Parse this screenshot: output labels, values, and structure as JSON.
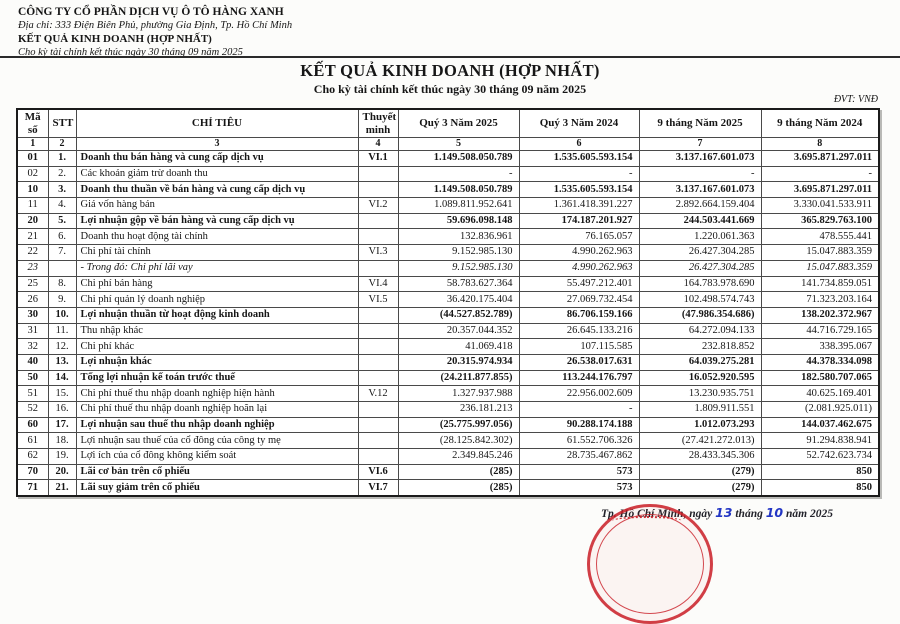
{
  "letterhead": {
    "company": "CÔNG TY CỔ PHẦN DỊCH VỤ Ô TÔ HÀNG XANH",
    "address": "Địa chỉ: 333 Điện Biên Phủ, phường Gia Định, Tp. Hồ Chí Minh",
    "report": "KẾT QUẢ KINH DOANH (HỢP NHẤT)",
    "period": "Cho kỳ tài chính kết thúc ngày 30 tháng 09 năm 2025"
  },
  "title": {
    "main": "KẾT QUẢ KINH DOANH (HỢP NHẤT)",
    "subtitle": "Cho kỳ tài chính kết thúc ngày 30 tháng 09 năm 2025"
  },
  "unit_label": "ĐVT: VNĐ",
  "table": {
    "headers": [
      "Mã số",
      "STT",
      "CHỈ TIÊU",
      "Thuyết minh",
      "Quý 3 Năm 2025",
      "Quý 3 Năm 2024",
      "9 tháng Năm 2025",
      "9 tháng Năm 2024"
    ],
    "column_numbers": [
      "1",
      "2",
      "3",
      "4",
      "5",
      "6",
      "7",
      "8"
    ],
    "rows": [
      {
        "ma": "01",
        "stt": "1.",
        "label": "Doanh thu bán hàng và cung cấp dịch vụ",
        "note": "VI.1",
        "q3_2025": "1.149.508.050.789",
        "q3_2024": "1.535.605.593.154",
        "y2025": "3.137.167.601.073",
        "y2024": "3.695.871.297.011",
        "style": "bold"
      },
      {
        "ma": "02",
        "stt": "2.",
        "label": "Các khoản giảm trừ doanh thu",
        "note": "",
        "q3_2025": "-",
        "q3_2024": "-",
        "y2025": "-",
        "y2024": "-",
        "style": "normal"
      },
      {
        "ma": "10",
        "stt": "3.",
        "label": "Doanh thu thuần về bán hàng và cung cấp dịch vụ",
        "note": "",
        "q3_2025": "1.149.508.050.789",
        "q3_2024": "1.535.605.593.154",
        "y2025": "3.137.167.601.073",
        "y2024": "3.695.871.297.011",
        "style": "bold"
      },
      {
        "ma": "11",
        "stt": "4.",
        "label": "Giá vốn hàng bán",
        "note": "VI.2",
        "q3_2025": "1.089.811.952.641",
        "q3_2024": "1.361.418.391.227",
        "y2025": "2.892.664.159.404",
        "y2024": "3.330.041.533.911",
        "style": "normal"
      },
      {
        "ma": "20",
        "stt": "5.",
        "label": "Lợi nhuận gộp về bán hàng và cung cấp dịch vụ",
        "note": "",
        "q3_2025": "59.696.098.148",
        "q3_2024": "174.187.201.927",
        "y2025": "244.503.441.669",
        "y2024": "365.829.763.100",
        "style": "bold"
      },
      {
        "ma": "21",
        "stt": "6.",
        "label": "Doanh thu hoạt động tài chính",
        "note": "",
        "q3_2025": "132.836.961",
        "q3_2024": "76.165.057",
        "y2025": "1.220.061.363",
        "y2024": "478.555.441",
        "style": "normal"
      },
      {
        "ma": "22",
        "stt": "7.",
        "label": "Chi phí tài chính",
        "note": "VI.3",
        "q3_2025": "9.152.985.130",
        "q3_2024": "4.990.262.963",
        "y2025": "26.427.304.285",
        "y2024": "15.047.883.359",
        "style": "normal"
      },
      {
        "ma": "23",
        "stt": "",
        "label": "- Trong đó: Chi phí lãi vay",
        "note": "",
        "q3_2025": "9.152.985.130",
        "q3_2024": "4.990.262.963",
        "y2025": "26.427.304.285",
        "y2024": "15.047.883.359",
        "style": "italic"
      },
      {
        "ma": "25",
        "stt": "8.",
        "label": "Chi phí bán hàng",
        "note": "VI.4",
        "q3_2025": "58.783.627.364",
        "q3_2024": "55.497.212.401",
        "y2025": "164.783.978.690",
        "y2024": "141.734.859.051",
        "style": "normal"
      },
      {
        "ma": "26",
        "stt": "9.",
        "label": "Chi phí quản lý doanh nghiệp",
        "note": "VI.5",
        "q3_2025": "36.420.175.404",
        "q3_2024": "27.069.732.454",
        "y2025": "102.498.574.743",
        "y2024": "71.323.203.164",
        "style": "normal"
      },
      {
        "ma": "30",
        "stt": "10.",
        "label": "Lợi nhuận thuần từ hoạt động kinh doanh",
        "note": "",
        "q3_2025": "(44.527.852.789)",
        "q3_2024": "86.706.159.166",
        "y2025": "(47.986.354.686)",
        "y2024": "138.202.372.967",
        "style": "bold"
      },
      {
        "ma": "31",
        "stt": "11.",
        "label": "Thu nhập khác",
        "note": "",
        "q3_2025": "20.357.044.352",
        "q3_2024": "26.645.133.216",
        "y2025": "64.272.094.133",
        "y2024": "44.716.729.165",
        "style": "normal"
      },
      {
        "ma": "32",
        "stt": "12.",
        "label": "Chi phí khác",
        "note": "",
        "q3_2025": "41.069.418",
        "q3_2024": "107.115.585",
        "y2025": "232.818.852",
        "y2024": "338.395.067",
        "style": "normal"
      },
      {
        "ma": "40",
        "stt": "13.",
        "label": "Lợi nhuận khác",
        "note": "",
        "q3_2025": "20.315.974.934",
        "q3_2024": "26.538.017.631",
        "y2025": "64.039.275.281",
        "y2024": "44.378.334.098",
        "style": "bold"
      },
      {
        "ma": "50",
        "stt": "14.",
        "label": "Tổng lợi nhuận kế toán trước thuế",
        "note": "",
        "q3_2025": "(24.211.877.855)",
        "q3_2024": "113.244.176.797",
        "y2025": "16.052.920.595",
        "y2024": "182.580.707.065",
        "style": "bold"
      },
      {
        "ma": "51",
        "stt": "15.",
        "label": "Chi phí thuế thu nhập doanh nghiệp hiện hành",
        "note": "V.12",
        "q3_2025": "1.327.937.988",
        "q3_2024": "22.956.002.609",
        "y2025": "13.230.935.751",
        "y2024": "40.625.169.401",
        "style": "normal"
      },
      {
        "ma": "52",
        "stt": "16.",
        "label": "Chi phí thuế thu nhập doanh nghiệp hoãn lại",
        "note": "",
        "q3_2025": "236.181.213",
        "q3_2024": "-",
        "y2025": "1.809.911.551",
        "y2024": "(2.081.925.011)",
        "style": "normal"
      },
      {
        "ma": "60",
        "stt": "17.",
        "label": "Lợi nhuận sau thuế thu nhập doanh nghiệp",
        "note": "",
        "q3_2025": "(25.775.997.056)",
        "q3_2024": "90.288.174.188",
        "y2025": "1.012.073.293",
        "y2024": "144.037.462.675",
        "style": "bold"
      },
      {
        "ma": "61",
        "stt": "18.",
        "label": "Lợi nhuận sau thuế của cổ đông của công ty mẹ",
        "note": "",
        "q3_2025": "(28.125.842.302)",
        "q3_2024": "61.552.706.326",
        "y2025": "(27.421.272.013)",
        "y2024": "91.294.838.941",
        "style": "normal"
      },
      {
        "ma": "62",
        "stt": "19.",
        "label": "Lợi ích của cổ đông không kiểm soát",
        "note": "",
        "q3_2025": "2.349.845.246",
        "q3_2024": "28.735.467.862",
        "y2025": "28.433.345.306",
        "y2024": "52.742.623.734",
        "style": "normal"
      },
      {
        "ma": "70",
        "stt": "20.",
        "label": "Lãi cơ bản trên cổ phiếu",
        "note": "VI.6",
        "q3_2025": "(285)",
        "q3_2024": "573",
        "y2025": "(279)",
        "y2024": "850",
        "style": "bold"
      },
      {
        "ma": "71",
        "stt": "21.",
        "label": "Lãi suy giảm trên cổ phiếu",
        "note": "VI.7",
        "q3_2025": "(285)",
        "q3_2024": "573",
        "y2025": "(279)",
        "y2024": "850",
        "style": "bold"
      }
    ]
  },
  "footer": {
    "date_prefix": "Tp. Hồ Chí Minh, ngày",
    "day": "13",
    "month_label": "tháng",
    "month": "10",
    "year_label": "năm 2025"
  },
  "colors": {
    "stamp_red": "#c91d26",
    "ink_blue": "#2336c4"
  }
}
